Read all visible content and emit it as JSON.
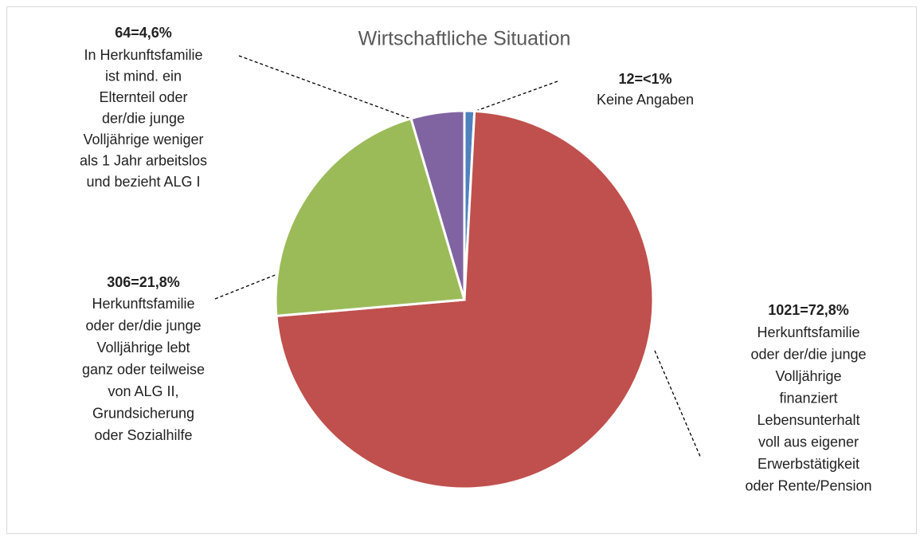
{
  "chart_data": {
    "type": "pie",
    "title": "Wirtschaftliche Situation",
    "categories": [
      [
        "Keine Angaben"
      ],
      [
        "Herkunftsfamilie",
        "oder der/die junge",
        "Volljährige",
        "finanziert",
        "Lebensunterhalt",
        "voll aus eigener",
        "Erwerbstätigkeit",
        "oder Rente/Pension"
      ],
      [
        "Herkunftsfamilie",
        "oder der/die junge",
        "Volljährige lebt",
        "ganz oder teilweise",
        "von ALG II,",
        "Grundsicherung",
        "oder Sozialhilfe"
      ],
      [
        "In Herkunftsfamilie",
        "ist mind. ein",
        "Elternteil oder",
        "der/die junge",
        "Volljährige weniger",
        "als 1 Jahr arbeitslos",
        "und bezieht ALG I"
      ]
    ],
    "values": [
      12,
      1021,
      306,
      64
    ],
    "value_labels": [
      "12=<1%",
      "1021=72,8%",
      "306=21,8%",
      "64=4,6%"
    ],
    "colors": [
      "#4f81bd",
      "#c0504d",
      "#9bbb59",
      "#8064a2"
    ]
  }
}
